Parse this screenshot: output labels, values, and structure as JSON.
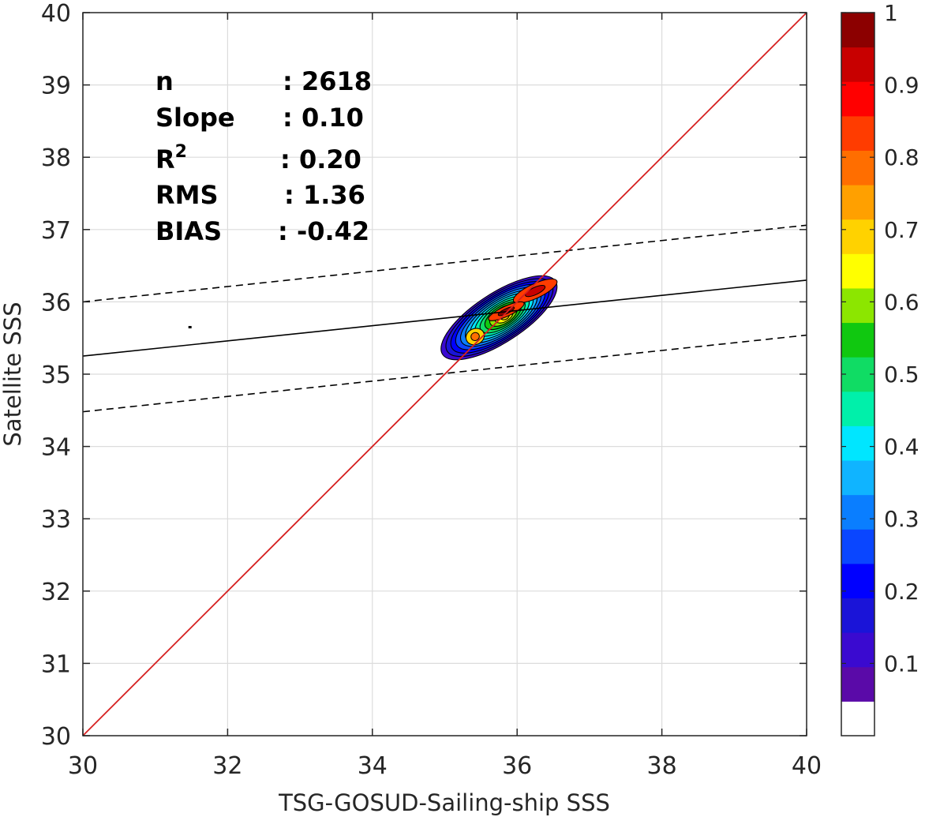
{
  "chart_data": {
    "type": "scatter",
    "subtype": "density-contour",
    "xlabel": "TSG-GOSUD-Sailing-ship SSS",
    "ylabel": "Satellite SSS",
    "xlim": [
      30,
      40
    ],
    "ylim": [
      30,
      40
    ],
    "xticks": [
      "30",
      "32",
      "34",
      "36",
      "38",
      "40"
    ],
    "yticks": [
      "30",
      "31",
      "32",
      "33",
      "34",
      "35",
      "36",
      "37",
      "38",
      "39",
      "40"
    ],
    "grid": true,
    "stats": [
      {
        "label": "n",
        "value": ": 2618"
      },
      {
        "label": "Slope",
        "value": ": 0.10"
      },
      {
        "label": "R",
        "sup": "2",
        "value": ": 0.20"
      },
      {
        "label": "RMS",
        "value": ": 1.36"
      },
      {
        "label": "BIAS",
        "value": ": -0.42"
      }
    ],
    "lines": {
      "identity": {
        "color": "#d62020",
        "x": [
          30,
          40
        ],
        "y": [
          30,
          40
        ]
      },
      "regression": {
        "color": "#000000",
        "x": [
          30,
          40
        ],
        "y": [
          35.25,
          36.3
        ]
      },
      "upper_bound": {
        "color": "#000000",
        "dashed": true,
        "x": [
          30,
          40
        ],
        "y": [
          36.0,
          37.06
        ]
      },
      "lower_bound": {
        "color": "#000000",
        "dashed": true,
        "x": [
          30,
          40
        ],
        "y": [
          34.48,
          35.54
        ]
      }
    },
    "density_peaks": [
      {
        "x": 36.25,
        "y": 36.15
      },
      {
        "x": 35.85,
        "y": 35.87
      },
      {
        "x": 35.42,
        "y": 35.52
      }
    ],
    "outlier_points": [
      {
        "x": 31.48,
        "y": 35.65
      }
    ],
    "colorbar": {
      "ticks": [
        "0.1",
        "0.2",
        "0.3",
        "0.4",
        "0.5",
        "0.6",
        "0.7",
        "0.8",
        "0.9",
        "1"
      ],
      "tick_values": [
        0.1,
        0.2,
        0.3,
        0.4,
        0.5,
        0.6,
        0.7,
        0.8,
        0.9,
        1.0
      ],
      "range": [
        0,
        1
      ],
      "colors": [
        "#ffffff",
        "#5a0aa8",
        "#3a0ad0",
        "#1a14d8",
        "#0000ff",
        "#0a46ff",
        "#0a7eff",
        "#10b4ff",
        "#00e6ff",
        "#00f0aa",
        "#10dc64",
        "#10c810",
        "#8ce600",
        "#ffff00",
        "#ffd200",
        "#ffa000",
        "#ff6e00",
        "#ff3c00",
        "#ff0000",
        "#c80000",
        "#8c0000"
      ]
    }
  }
}
